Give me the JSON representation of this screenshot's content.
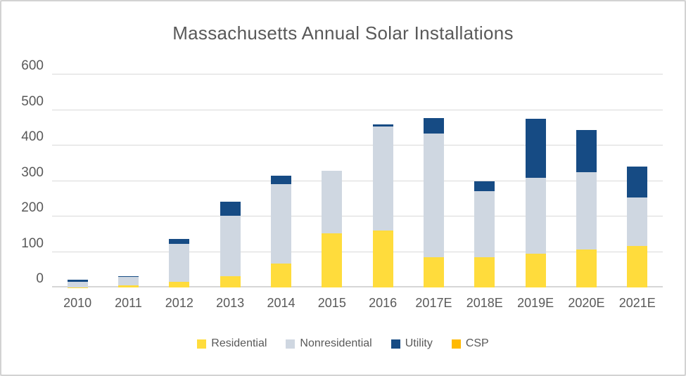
{
  "chart_data": {
    "type": "bar",
    "stacked": true,
    "title": "Massachusetts Annual Solar Installations",
    "xlabel": "",
    "ylabel": "",
    "ylim": [
      0,
      600
    ],
    "yticks": [
      0,
      100,
      200,
      300,
      400,
      500,
      600
    ],
    "grid": true,
    "legend_position": "bottom",
    "categories": [
      "2010",
      "2011",
      "2012",
      "2013",
      "2014",
      "2015",
      "2016",
      "2017E",
      "2018E",
      "2019E",
      "2020E",
      "2021E"
    ],
    "series": [
      {
        "name": "Residential",
        "color": "#FFDC3C",
        "values": [
          1,
          6,
          16,
          31,
          67,
          153,
          161,
          85,
          85,
          96,
          107,
          116
        ]
      },
      {
        "name": "Nonresidential",
        "color": "#CFD7E1",
        "values": [
          15,
          23,
          107,
          172,
          225,
          176,
          293,
          349,
          187,
          212,
          217,
          137
        ]
      },
      {
        "name": "Utility",
        "color": "#164B84",
        "values": [
          6,
          2,
          13,
          38,
          23,
          0,
          6,
          43,
          28,
          167,
          119,
          88
        ]
      },
      {
        "name": "CSP",
        "color": "#FFB900",
        "values": [
          0,
          0,
          0,
          0,
          0,
          0,
          0,
          0,
          0,
          0,
          0,
          0
        ]
      }
    ],
    "totals": [
      22,
      31,
      136,
      241,
      315,
      329,
      460,
      477,
      300,
      475,
      443,
      341
    ]
  },
  "colors": {
    "title_text": "#595959",
    "axis_text": "#595959",
    "gridline": "#D9D9D9",
    "background": "#FFFFFF",
    "frame_border": "#D2D2D2"
  }
}
